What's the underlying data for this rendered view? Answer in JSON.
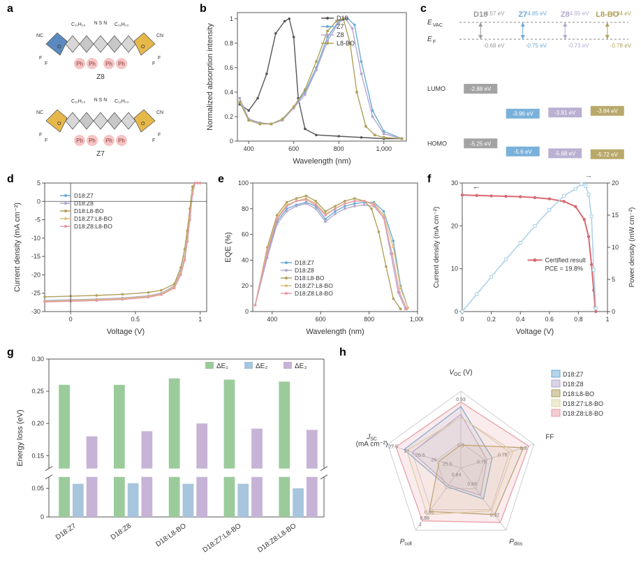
{
  "figure": {
    "panels": [
      "a",
      "b",
      "c",
      "d",
      "e",
      "f",
      "g",
      "h"
    ],
    "colors": {
      "D18": "#777777",
      "Z7": "#6ba9d6",
      "Z8": "#b3a8cd",
      "L8BO": "#b0a05a",
      "D18Z7": "#6ba9d6",
      "D18Z8": "#b3a8cd",
      "D18L8BO": "#b0a05a",
      "D18Z7L8BO": "#d9c07a",
      "D18Z8L8BO": "#e59aa3",
      "dE1": "#9BCB9B",
      "dE2": "#A7C5DD",
      "dE3": "#C6B3D6",
      "cert_red": "#d76a71",
      "cert_blue": "#a9cfe6"
    }
  },
  "panel_a": {
    "label": "a",
    "molecules": [
      "Z8",
      "Z7"
    ],
    "group_text": "C₁₁H₂₃",
    "ph": "Ph",
    "atoms": [
      "CN",
      "O",
      "F",
      "N",
      "S"
    ]
  },
  "panel_b": {
    "label": "b",
    "title": "",
    "x_label": "Wavelength (nm)",
    "y_label": "Normalized absorption intensity",
    "xlim": [
      350,
      1100
    ],
    "ylim": [
      0,
      1.05
    ],
    "xticks": [
      400,
      600,
      800,
      1000
    ],
    "yticks": [
      0,
      0.2,
      0.4,
      0.6,
      0.8,
      1.0
    ],
    "series": [
      {
        "name": "D18",
        "color": "#555555",
        "marker": "circle",
        "x": [
          360,
          400,
          440,
          480,
          520,
          560,
          580,
          600,
          620,
          650,
          700,
          800,
          900,
          1000,
          1080
        ],
        "y": [
          0.3,
          0.25,
          0.35,
          0.55,
          0.88,
          0.98,
          1.0,
          0.85,
          0.35,
          0.1,
          0.05,
          0.04,
          0.03,
          0.02,
          0.02
        ]
      },
      {
        "name": "Z7",
        "color": "#6ba9d6",
        "marker": "circle",
        "x": [
          360,
          400,
          450,
          500,
          550,
          600,
          650,
          700,
          750,
          800,
          840,
          870,
          900,
          950,
          1000,
          1080
        ],
        "y": [
          0.35,
          0.18,
          0.15,
          0.14,
          0.18,
          0.28,
          0.4,
          0.6,
          0.85,
          0.98,
          1.0,
          0.95,
          0.65,
          0.25,
          0.08,
          0.02
        ]
      },
      {
        "name": "Z8",
        "color": "#b3a8cd",
        "marker": "square",
        "x": [
          360,
          400,
          450,
          500,
          550,
          600,
          650,
          700,
          750,
          800,
          830,
          860,
          900,
          950,
          1000,
          1080
        ],
        "y": [
          0.35,
          0.18,
          0.15,
          0.14,
          0.17,
          0.27,
          0.38,
          0.58,
          0.82,
          0.97,
          1.0,
          0.92,
          0.55,
          0.2,
          0.06,
          0.02
        ]
      },
      {
        "name": "L8-BO",
        "color": "#b0a05a",
        "marker": "square",
        "x": [
          360,
          400,
          450,
          500,
          550,
          600,
          650,
          700,
          750,
          790,
          820,
          850,
          880,
          920,
          960,
          1000,
          1080
        ],
        "y": [
          0.32,
          0.17,
          0.14,
          0.14,
          0.18,
          0.28,
          0.42,
          0.65,
          0.9,
          0.98,
          1.0,
          0.8,
          0.4,
          0.12,
          0.05,
          0.03,
          0.02
        ]
      }
    ]
  },
  "panel_c": {
    "label": "c",
    "headers": [
      "D18",
      "Z7",
      "Z8",
      "L8-BO"
    ],
    "header_colors": [
      "#999999",
      "#6ba9d6",
      "#b3a8cd",
      "#b0a05a"
    ],
    "evac_label": "E_VAC",
    "ef_label": "E_F",
    "lumo_label": "LUMO",
    "homo_label": "HOMO",
    "evac": [
      -4.57,
      -4.85,
      -4.95,
      -4.94
    ],
    "ef": [
      -0.68,
      -0.75,
      -0.73,
      -0.78
    ],
    "lumo": [
      -2.88,
      -3.96,
      -3.91,
      -3.84
    ],
    "homo": [
      -5.25,
      -5.6,
      -5.68,
      -5.72
    ],
    "unit": "eV"
  },
  "panel_d": {
    "label": "d",
    "x_label": "Voltage (V)",
    "y_label": "Current density (mA cm⁻²)",
    "xlim": [
      -0.2,
      1.05
    ],
    "ylim": [
      -30,
      5
    ],
    "xticks": [
      0,
      0.5,
      1.0
    ],
    "yticks": [
      -30,
      -25,
      -20,
      -15,
      -10,
      -5,
      0,
      5
    ],
    "series": [
      {
        "name": "D18:Z7",
        "color": "#6ba9d6",
        "x": [
          -0.2,
          0,
          0.2,
          0.4,
          0.6,
          0.7,
          0.8,
          0.85,
          0.88,
          0.9,
          0.92,
          0.94,
          0.96,
          0.98,
          1.0
        ],
        "y": [
          -27.3,
          -27.1,
          -26.9,
          -26.6,
          -26.0,
          -25.3,
          -23.5,
          -20,
          -16,
          -11,
          -5,
          2,
          5,
          5,
          5
        ]
      },
      {
        "name": "D18:Z8",
        "color": "#b3a8cd",
        "x": [
          -0.2,
          0,
          0.2,
          0.4,
          0.6,
          0.7,
          0.8,
          0.85,
          0.88,
          0.9,
          0.92,
          0.94,
          0.96,
          0.98,
          1.0
        ],
        "y": [
          -27.0,
          -26.8,
          -26.6,
          -26.3,
          -25.7,
          -25.0,
          -23.0,
          -19,
          -15,
          -10,
          -4,
          3,
          5,
          5,
          5
        ]
      },
      {
        "name": "D18:L8-BO",
        "color": "#b0a05a",
        "x": [
          -0.2,
          0,
          0.2,
          0.4,
          0.6,
          0.7,
          0.8,
          0.85,
          0.88,
          0.9,
          0.92,
          0.94,
          0.96,
          0.98,
          1.0
        ],
        "y": [
          -26.0,
          -25.8,
          -25.6,
          -25.3,
          -24.8,
          -24.2,
          -22.5,
          -18,
          -13,
          -8,
          -2,
          4,
          5,
          5,
          5
        ]
      },
      {
        "name": "D18:Z7:L8-BO",
        "color": "#d9c07a",
        "x": [
          -0.2,
          0,
          0.2,
          0.4,
          0.6,
          0.7,
          0.8,
          0.85,
          0.88,
          0.9,
          0.92,
          0.94,
          0.96,
          0.98,
          1.0
        ],
        "y": [
          -27.2,
          -27.0,
          -26.8,
          -26.5,
          -25.9,
          -25.2,
          -23.3,
          -19.5,
          -15.5,
          -10.5,
          -4.5,
          2.5,
          5,
          5,
          5
        ]
      },
      {
        "name": "D18:Z8:L8-BO",
        "color": "#e59aa3",
        "x": [
          -0.2,
          0,
          0.2,
          0.4,
          0.6,
          0.7,
          0.8,
          0.85,
          0.88,
          0.9,
          0.92,
          0.94,
          0.96,
          0.98,
          1.0
        ],
        "y": [
          -27.4,
          -27.2,
          -27.0,
          -26.7,
          -26.1,
          -25.4,
          -23.6,
          -20,
          -16,
          -11,
          -5,
          2,
          5,
          5,
          5
        ]
      }
    ]
  },
  "panel_e": {
    "label": "e",
    "x_label": "Wavelength (nm)",
    "y_label": "EQE (%)",
    "xlim": [
      320,
      1000
    ],
    "ylim": [
      0,
      100
    ],
    "xticks": [
      400,
      600,
      800,
      1000
    ],
    "yticks": [
      0,
      20,
      40,
      60,
      80,
      100
    ],
    "series": [
      {
        "name": "D18:Z7",
        "color": "#6ba9d6",
        "x": [
          330,
          380,
          420,
          460,
          500,
          540,
          580,
          620,
          660,
          700,
          740,
          780,
          820,
          860,
          900,
          930,
          960
        ],
        "y": [
          5,
          45,
          70,
          80,
          83,
          85,
          82,
          72,
          78,
          82,
          84,
          85,
          85,
          78,
          55,
          20,
          3
        ]
      },
      {
        "name": "D18:Z8",
        "color": "#b3a8cd",
        "x": [
          330,
          380,
          420,
          460,
          500,
          540,
          580,
          620,
          660,
          700,
          740,
          780,
          820,
          860,
          890,
          920,
          950
        ],
        "y": [
          5,
          42,
          68,
          78,
          82,
          84,
          80,
          70,
          76,
          80,
          82,
          83,
          82,
          73,
          45,
          15,
          2
        ]
      },
      {
        "name": "D18:L8-BO",
        "color": "#b0a05a",
        "x": [
          330,
          380,
          420,
          460,
          500,
          540,
          580,
          620,
          660,
          700,
          740,
          780,
          810,
          840,
          870,
          900,
          930
        ],
        "y": [
          5,
          50,
          75,
          85,
          88,
          90,
          86,
          78,
          82,
          86,
          88,
          86,
          80,
          62,
          35,
          10,
          2
        ]
      },
      {
        "name": "D18:Z7:L8-BO",
        "color": "#d9c07a",
        "x": [
          330,
          380,
          420,
          460,
          500,
          540,
          580,
          620,
          660,
          700,
          740,
          780,
          820,
          860,
          900,
          930,
          960
        ],
        "y": [
          5,
          48,
          73,
          83,
          86,
          88,
          84,
          76,
          80,
          84,
          86,
          86,
          84,
          75,
          50,
          18,
          3
        ]
      },
      {
        "name": "D18:Z8:L8-BO",
        "color": "#e59aa3",
        "x": [
          330,
          380,
          420,
          460,
          500,
          540,
          580,
          620,
          660,
          700,
          740,
          780,
          820,
          860,
          895,
          925,
          955
        ],
        "y": [
          5,
          46,
          72,
          82,
          86,
          87,
          83,
          75,
          80,
          84,
          86,
          86,
          83,
          73,
          45,
          15,
          2
        ]
      }
    ]
  },
  "panel_f": {
    "label": "f",
    "x_label": "Voltage (V)",
    "y_label_left": "Current density (mA cm⁻²)",
    "y_label_right": "Power density (mW cm⁻²)",
    "xlim": [
      0,
      1.0
    ],
    "ylim_left": [
      0,
      30
    ],
    "ylim_right": [
      0,
      20
    ],
    "xticks": [
      0,
      0.2,
      0.4,
      0.6,
      0.8,
      1.0
    ],
    "yticks_left": [
      0,
      10,
      20,
      30
    ],
    "yticks_right": [
      0,
      5,
      10,
      15,
      20
    ],
    "legend_text": "Certified result",
    "pce_text": "PCE = 19.8%",
    "jv": {
      "color": "#d76a71",
      "x": [
        0,
        0.1,
        0.2,
        0.3,
        0.4,
        0.5,
        0.6,
        0.7,
        0.78,
        0.84,
        0.87,
        0.89,
        0.905,
        0.915,
        0.92
      ],
      "y": [
        27.2,
        27.1,
        27.0,
        26.9,
        26.8,
        26.6,
        26.3,
        25.7,
        24.5,
        21.5,
        17.5,
        11,
        5,
        1,
        0
      ]
    },
    "power": {
      "color": "#a9cfe6",
      "x": [
        0,
        0.1,
        0.2,
        0.3,
        0.4,
        0.5,
        0.6,
        0.7,
        0.78,
        0.82,
        0.85,
        0.87,
        0.89,
        0.905,
        0.92
      ],
      "y": [
        0,
        2.7,
        5.4,
        8.1,
        10.7,
        13.3,
        15.8,
        18.0,
        19.1,
        19.8,
        19.5,
        18.2,
        14.8,
        6.5,
        0.5
      ]
    }
  },
  "panel_g": {
    "label": "g",
    "x_label": "",
    "y_label": "Energy loss (eV)",
    "categories": [
      "D18:Z7",
      "D18:Z8",
      "D18:L8-BO",
      "D18:Z7:L8-BO",
      "D18:Z8:L8-BO"
    ],
    "legend": [
      "ΔE₁",
      "ΔE₂",
      "ΔE₃"
    ],
    "legend_colors": [
      "#9BCB9B",
      "#A7C5DD",
      "#C6B3D6"
    ],
    "ylim": [
      0,
      0.3
    ],
    "yticks_upper": [
      0.15,
      0.2,
      0.25,
      0.3
    ],
    "yticks_lower": [
      0,
      0.05
    ],
    "values": {
      "dE1": [
        0.26,
        0.26,
        0.27,
        0.268,
        0.265
      ],
      "dE2": [
        0.058,
        0.059,
        0.058,
        0.058,
        0.05
      ],
      "dE3": [
        0.18,
        0.188,
        0.2,
        0.192,
        0.19
      ]
    }
  },
  "panel_h": {
    "label": "h",
    "axes": [
      "V_OC (V)",
      "FF",
      "P_diss",
      "P_coll",
      "J_SC\n(mA cm⁻²)"
    ],
    "ax_order": [
      "Voc",
      "FF",
      "Pdiss",
      "Pcoll",
      "Jsc"
    ],
    "ticks": {
      "Voc": [
        0.9,
        0.93
      ],
      "FF": [
        0.76,
        0.78,
        0.8
      ],
      "Pdiss": [
        0.88,
        0.92
      ],
      "Pcoll": [
        0.84,
        0.96,
        0.98,
        1.0
      ],
      "Jsc": [
        25.5,
        26.0,
        26.5,
        27.0,
        27.5
      ]
    },
    "ranges": {
      "Voc": [
        0.885,
        0.935
      ],
      "FF": [
        0.74,
        0.81
      ],
      "Pdiss": [
        0.86,
        0.94
      ],
      "Pcoll": [
        0.82,
        1.02
      ],
      "Jsc": [
        25.0,
        27.7
      ]
    },
    "legend": [
      "D18:Z7",
      "D18:Z8",
      "D18:L8-BO",
      "D18:Z7:L8-BO",
      "D18:Z8:L8-BO"
    ],
    "legend_colors": [
      "#6ba9d6",
      "#b3a8cd",
      "#b0a05a",
      "#e0d7a6",
      "#e59aa3"
    ],
    "series": [
      {
        "name": "D18:Z7",
        "color": "#6ba9d6",
        "fill_opacity": 0.1,
        "Voc": 0.925,
        "FF": 0.77,
        "Pdiss": 0.9,
        "Pcoll": 0.88,
        "Jsc": 27.1
      },
      {
        "name": "D18:Z8",
        "color": "#b3a8cd",
        "fill_opacity": 0.1,
        "Voc": 0.92,
        "FF": 0.765,
        "Pdiss": 0.895,
        "Pcoll": 0.875,
        "Jsc": 26.8
      },
      {
        "name": "D18:L8-BO",
        "color": "#b0a05a",
        "fill_opacity": 0.1,
        "Voc": 0.9,
        "FF": 0.8,
        "Pdiss": 0.92,
        "Pcoll": 0.96,
        "Jsc": 25.8
      },
      {
        "name": "D18:Z7:L8-BO",
        "color": "#e0d7a6",
        "fill_opacity": 0.1,
        "Voc": 0.918,
        "FF": 0.79,
        "Pdiss": 0.915,
        "Pcoll": 0.97,
        "Jsc": 27.0
      },
      {
        "name": "D18:Z8:L8-BO",
        "color": "#e59aa3",
        "fill_opacity": 0.2,
        "Voc": 0.928,
        "FF": 0.805,
        "Pdiss": 0.93,
        "Pcoll": 0.99,
        "Jsc": 27.4
      }
    ]
  }
}
